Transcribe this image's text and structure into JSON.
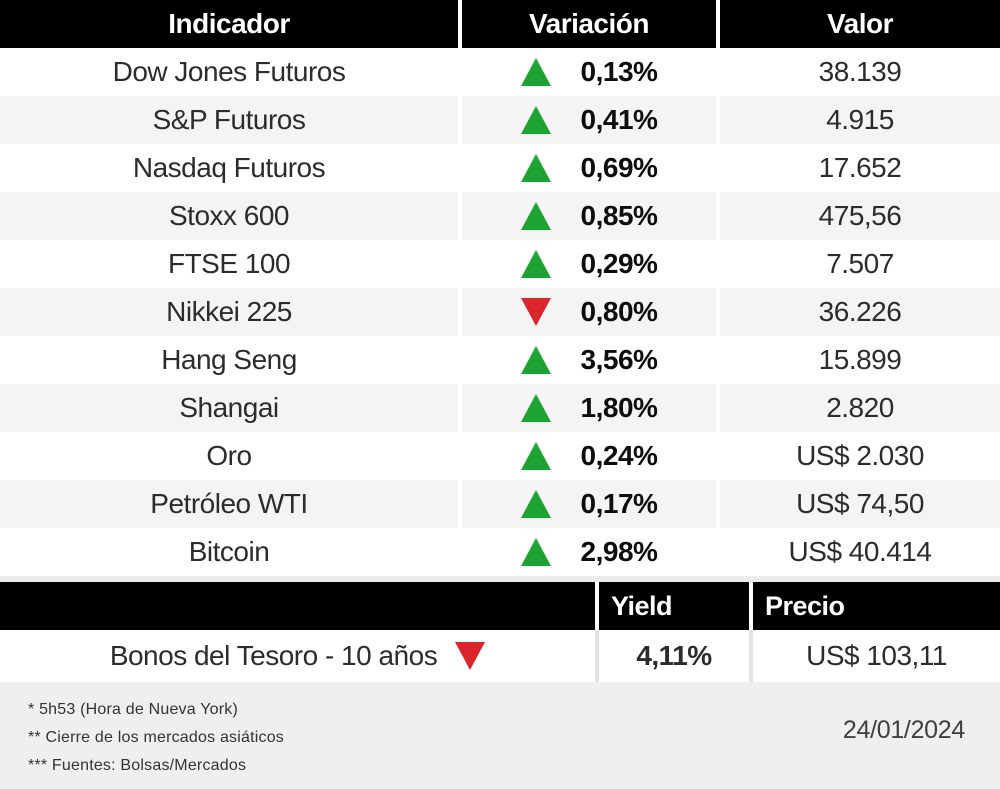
{
  "chart_data": {
    "type": "table",
    "main": {
      "columns": [
        "Indicador",
        "Variación",
        "Valor"
      ],
      "rows": [
        {
          "indicador": "Dow Jones Futuros",
          "direction": "up",
          "variacion": "0,13%",
          "valor": "38.139"
        },
        {
          "indicador": "S&P Futuros",
          "direction": "up",
          "variacion": "0,41%",
          "valor": "4.915"
        },
        {
          "indicador": "Nasdaq Futuros",
          "direction": "up",
          "variacion": "0,69%",
          "valor": "17.652"
        },
        {
          "indicador": "Stoxx 600",
          "direction": "up",
          "variacion": "0,85%",
          "valor": "475,56"
        },
        {
          "indicador": "FTSE 100",
          "direction": "up",
          "variacion": "0,29%",
          "valor": "7.507"
        },
        {
          "indicador": "Nikkei 225",
          "direction": "down",
          "variacion": "0,80%",
          "valor": "36.226"
        },
        {
          "indicador": "Hang Seng",
          "direction": "up",
          "variacion": "3,56%",
          "valor": "15.899"
        },
        {
          "indicador": "Shangai",
          "direction": "up",
          "variacion": "1,80%",
          "valor": "2.820"
        },
        {
          "indicador": "Oro",
          "direction": "up",
          "variacion": "0,24%",
          "valor": "US$ 2.030"
        },
        {
          "indicador": "Petróleo WTI",
          "direction": "up",
          "variacion": "0,17%",
          "valor": "US$ 74,50"
        },
        {
          "indicador": "Bitcoin",
          "direction": "up",
          "variacion": "2,98%",
          "valor": "US$ 40.414"
        }
      ]
    },
    "bonds": {
      "columns": [
        "Yield",
        "Precio"
      ],
      "rows": [
        {
          "indicador": "Bonos del Tesoro - 10 años",
          "direction": "down",
          "yield": "4,11%",
          "precio": "US$ 103,11"
        }
      ]
    }
  },
  "footer": {
    "notes": [
      "* 5h53 (Hora de Nueva York)",
      "** Cierre de los mercados asiáticos",
      "*** Fuentes: Bolsas/Mercados"
    ],
    "date": "24/01/2024"
  },
  "colors": {
    "up": "#1da332",
    "down": "#d9252b",
    "header_bg": "#000000",
    "row_alt_bg": "#f4f4f4",
    "footer_bg": "#efefef",
    "divider_bg": "#ededed"
  }
}
